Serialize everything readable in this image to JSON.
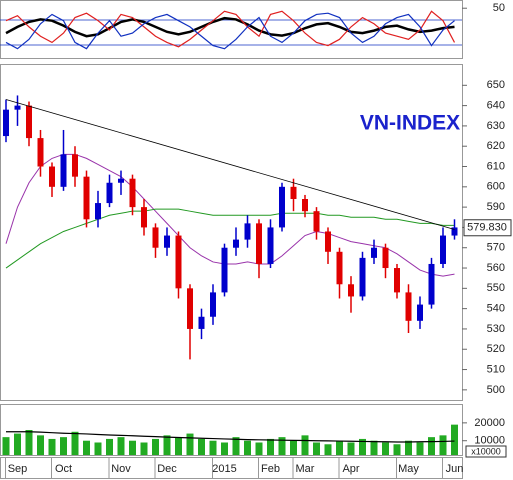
{
  "chart_data": [
    {
      "type": "line",
      "ylim": [
        -30,
        60
      ],
      "yticks": [
        50
      ],
      "series": [
        {
          "color": "#000000",
          "width": 2.5,
          "values": [
            10,
            20,
            28,
            32,
            30,
            22,
            12,
            5,
            8,
            18,
            28,
            32,
            28,
            20,
            12,
            8,
            12,
            20,
            28,
            34,
            32,
            24,
            14,
            8,
            6,
            10,
            18,
            24,
            26,
            20,
            12,
            10,
            14,
            20,
            22,
            16,
            12,
            14,
            18,
            20
          ]
        },
        {
          "color": "#e02020",
          "width": 1.2,
          "values": [
            30,
            38,
            20,
            5,
            -5,
            10,
            35,
            42,
            30,
            15,
            40,
            35,
            20,
            5,
            -5,
            -12,
            0,
            15,
            30,
            45,
            40,
            20,
            5,
            40,
            45,
            30,
            10,
            -5,
            -10,
            0,
            20,
            35,
            25,
            10,
            5,
            0,
            15,
            45,
            30,
            -5
          ]
        },
        {
          "color": "#1030c0",
          "width": 1.2,
          "values": [
            -5,
            -15,
            0,
            25,
            40,
            30,
            -5,
            -15,
            10,
            30,
            5,
            10,
            25,
            35,
            40,
            30,
            20,
            5,
            -10,
            -15,
            0,
            20,
            35,
            5,
            -5,
            10,
            30,
            40,
            42,
            35,
            10,
            -5,
            5,
            25,
            35,
            40,
            20,
            -10,
            15,
            30
          ]
        }
      ]
    },
    {
      "type": "candlestick",
      "title": "VN-INDEX",
      "ylim": [
        495,
        660
      ],
      "yticks": [
        500,
        510,
        520,
        530,
        540,
        550,
        560,
        570,
        580,
        590,
        600,
        610,
        620,
        630,
        640,
        650
      ],
      "up_color": "#0000cc",
      "down_color": "#e00000",
      "open": [
        625,
        638,
        640,
        624,
        610,
        600,
        616,
        605,
        584,
        592,
        602,
        604,
        590,
        580,
        570,
        576,
        550,
        530,
        536,
        548,
        570,
        574,
        582,
        562,
        580,
        600,
        594,
        588,
        578,
        568,
        552,
        546,
        565,
        570,
        560,
        548,
        534,
        542,
        562,
        576
      ],
      "high": [
        643,
        645,
        642,
        628,
        612,
        628,
        620,
        608,
        598,
        606,
        608,
        606,
        594,
        582,
        580,
        578,
        552,
        540,
        552,
        572,
        580,
        586,
        584,
        584,
        602,
        604,
        596,
        590,
        580,
        570,
        556,
        568,
        574,
        572,
        562,
        552,
        546,
        565,
        580,
        584
      ],
      "low": [
        622,
        630,
        620,
        605,
        595,
        598,
        600,
        580,
        580,
        590,
        596,
        586,
        576,
        565,
        566,
        545,
        515,
        525,
        532,
        546,
        566,
        570,
        555,
        560,
        578,
        588,
        585,
        574,
        562,
        545,
        538,
        544,
        562,
        555,
        545,
        528,
        530,
        540,
        560,
        574
      ],
      "close": [
        638,
        640,
        624,
        610,
        600,
        616,
        605,
        584,
        592,
        602,
        604,
        590,
        580,
        570,
        576,
        550,
        530,
        536,
        548,
        570,
        574,
        582,
        562,
        580,
        600,
        594,
        588,
        578,
        568,
        552,
        546,
        565,
        570,
        560,
        548,
        534,
        542,
        562,
        576,
        580
      ],
      "moving_averages": [
        {
          "color": "#9933aa",
          "values": [
            572,
            590,
            602,
            610,
            614,
            616,
            616,
            614,
            611,
            608,
            605,
            600,
            594,
            588,
            582,
            576,
            570,
            566,
            563,
            562,
            562,
            563,
            562,
            562,
            566,
            571,
            576,
            578,
            577,
            575,
            573,
            572,
            571,
            570,
            567,
            563,
            559,
            557,
            556,
            557
          ]
        },
        {
          "color": "#229922",
          "values": [
            560,
            564,
            568,
            572,
            575,
            578,
            580,
            582,
            584,
            586,
            587,
            588,
            588,
            589,
            589,
            589,
            588,
            587,
            586,
            586,
            586,
            586,
            586,
            586,
            587,
            587,
            587,
            587,
            586,
            586,
            585,
            585,
            585,
            584,
            584,
            583,
            582,
            582,
            581,
            581
          ]
        }
      ],
      "trendline": {
        "color": "#000000",
        "values": [
          643,
          579
        ]
      },
      "last_price": {
        "value": 579.83,
        "label": "579.830"
      }
    },
    {
      "type": "bar",
      "color": "#22aa22",
      "ylim": [
        2000,
        30000
      ],
      "yticks": [
        10000,
        20000
      ],
      "unit_label": "x10000",
      "categories": [
        null,
        "Sep",
        null,
        null,
        null,
        "Oct",
        null,
        null,
        null,
        null,
        "Nov",
        null,
        null,
        null,
        "Dec",
        null,
        null,
        null,
        null,
        "2015",
        null,
        null,
        null,
        "Feb",
        null,
        null,
        "Mar",
        null,
        null,
        null,
        "Apr",
        null,
        null,
        null,
        null,
        "May",
        null,
        null,
        null,
        "Jun"
      ],
      "values": [
        12000,
        14000,
        16000,
        13000,
        11000,
        12000,
        15000,
        10000,
        9000,
        11000,
        12000,
        10000,
        9000,
        11000,
        13000,
        12000,
        14000,
        11000,
        10000,
        9000,
        12000,
        10000,
        9000,
        11000,
        12000,
        10000,
        13000,
        9000,
        8000,
        10000,
        9000,
        11000,
        10000,
        9000,
        8000,
        10000,
        9000,
        12000,
        13000,
        19000
      ],
      "average": {
        "color": "#000000",
        "values": [
          15000,
          15000,
          15000,
          14800,
          14500,
          14200,
          14000,
          13800,
          13500,
          13200,
          13000,
          12800,
          12500,
          12300,
          12000,
          11800,
          11600,
          11400,
          11200,
          11000,
          10800,
          10600,
          10500,
          10400,
          10300,
          10200,
          10100,
          10000,
          9900,
          9800,
          9700,
          9600,
          9500,
          9400,
          9300,
          9300,
          9400,
          9500,
          9600,
          9800
        ]
      }
    }
  ]
}
